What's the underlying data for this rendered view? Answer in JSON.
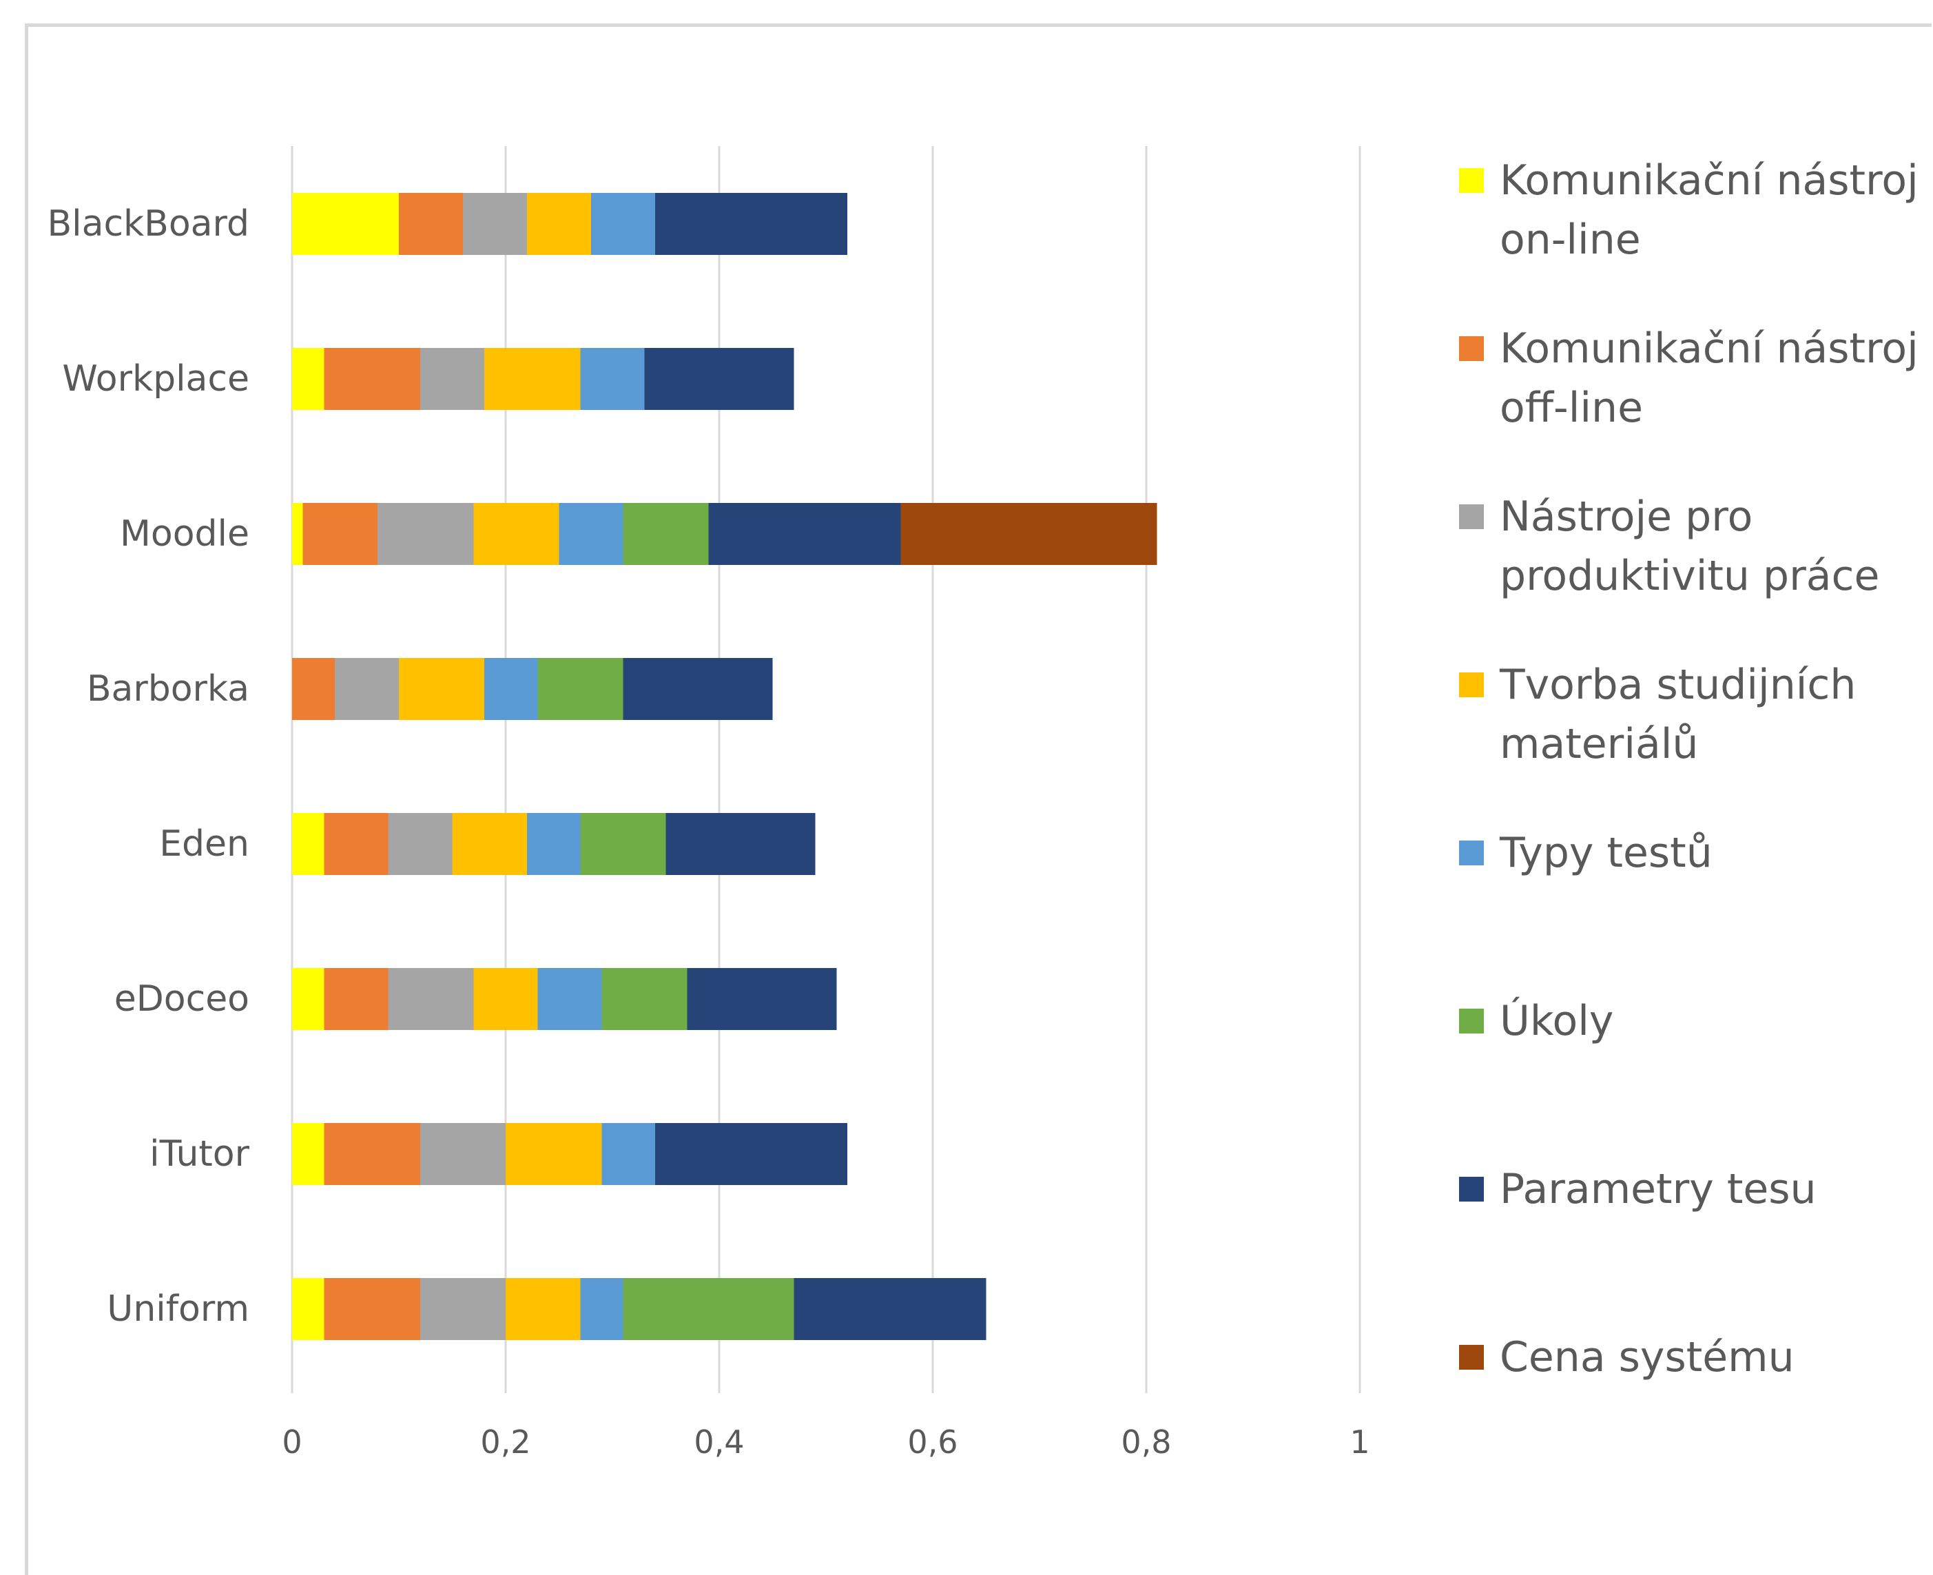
{
  "chart_data": {
    "type": "bar",
    "orientation": "horizontal",
    "stacked": true,
    "title": "",
    "xlabel": "",
    "ylabel": "",
    "categories": [
      "BlackBoard",
      "Workplace",
      "Moodle",
      "Barborka",
      "Eden",
      "eDoceo",
      "iTutor",
      "Uniform"
    ],
    "xlim": [
      0,
      1
    ],
    "x_ticks": [
      "0",
      "0,2",
      "0,4",
      "0,6",
      "0,8",
      "1"
    ],
    "x_tick_values": [
      0,
      0.2,
      0.4,
      0.6,
      0.8,
      1
    ],
    "grid": "vertical",
    "legend_position": "right",
    "series": [
      {
        "name": "Komunikační nástroj on-line",
        "label_lines": [
          "Komunikační nástroj",
          "on-line"
        ],
        "color": "#FFFF00",
        "values": [
          0.1,
          0.03,
          0.01,
          0,
          0.03,
          0.03,
          0.03,
          0.03
        ]
      },
      {
        "name": "Komunikační nástroj off-line",
        "label_lines": [
          "Komunikační nástroj",
          "off-line"
        ],
        "color": "#ED7D31",
        "values": [
          0.06,
          0.09,
          0.07,
          0.04,
          0.06,
          0.06,
          0.09,
          0.09
        ]
      },
      {
        "name": "Nástroje pro produktivitu práce",
        "label_lines": [
          "Nástroje pro",
          "produktivitu práce"
        ],
        "color": "#A5A5A5",
        "values": [
          0.06,
          0.06,
          0.09,
          0.06,
          0.06,
          0.08,
          0.08,
          0.08
        ]
      },
      {
        "name": "Tvorba studijních materiálů",
        "label_lines": [
          "Tvorba studijních",
          "materiálů"
        ],
        "color": "#FFC000",
        "values": [
          0.06,
          0.09,
          0.08,
          0.08,
          0.07,
          0.06,
          0.09,
          0.07
        ]
      },
      {
        "name": "Typy testů",
        "label_lines": [
          "Typy testů"
        ],
        "color": "#5B9BD5",
        "values": [
          0.06,
          0.06,
          0.06,
          0.05,
          0.05,
          0.06,
          0.05,
          0.04
        ]
      },
      {
        "name": "Úkoly",
        "label_lines": [
          "Úkoly"
        ],
        "color": "#70AD47",
        "values": [
          0,
          0,
          0.08,
          0.08,
          0.08,
          0.08,
          0,
          0.16
        ]
      },
      {
        "name": "Parametry tesu",
        "label_lines": [
          "Parametry tesu"
        ],
        "color": "#264478",
        "values": [
          0.18,
          0.14,
          0.18,
          0.14,
          0.14,
          0.14,
          0.18,
          0.18
        ]
      },
      {
        "name": "Cena systému",
        "label_lines": [
          "Cena systému"
        ],
        "color": "#9E480E",
        "values": [
          0,
          0,
          0.24,
          0,
          0,
          0,
          0,
          0
        ]
      }
    ]
  }
}
